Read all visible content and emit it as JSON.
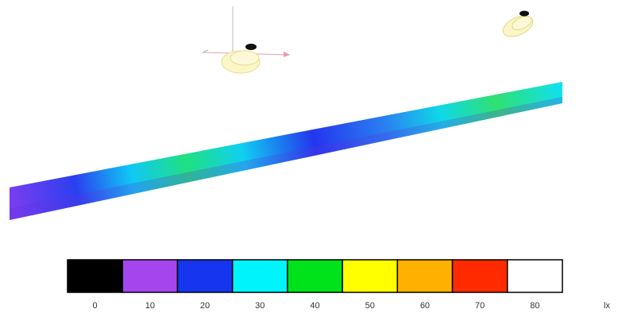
{
  "legend": {
    "unit": "lx",
    "items": [
      {
        "label": "0",
        "color": "#000000"
      },
      {
        "label": "10",
        "color": "#a545ee"
      },
      {
        "label": "20",
        "color": "#1536ee"
      },
      {
        "label": "30",
        "color": "#00f4fb"
      },
      {
        "label": "40",
        "color": "#00e21a"
      },
      {
        "label": "50",
        "color": "#ffff00"
      },
      {
        "label": "60",
        "color": "#ffb000"
      },
      {
        "label": "70",
        "color": "#ff2a00"
      },
      {
        "label": "80",
        "color": "#ffffff"
      }
    ]
  }
}
